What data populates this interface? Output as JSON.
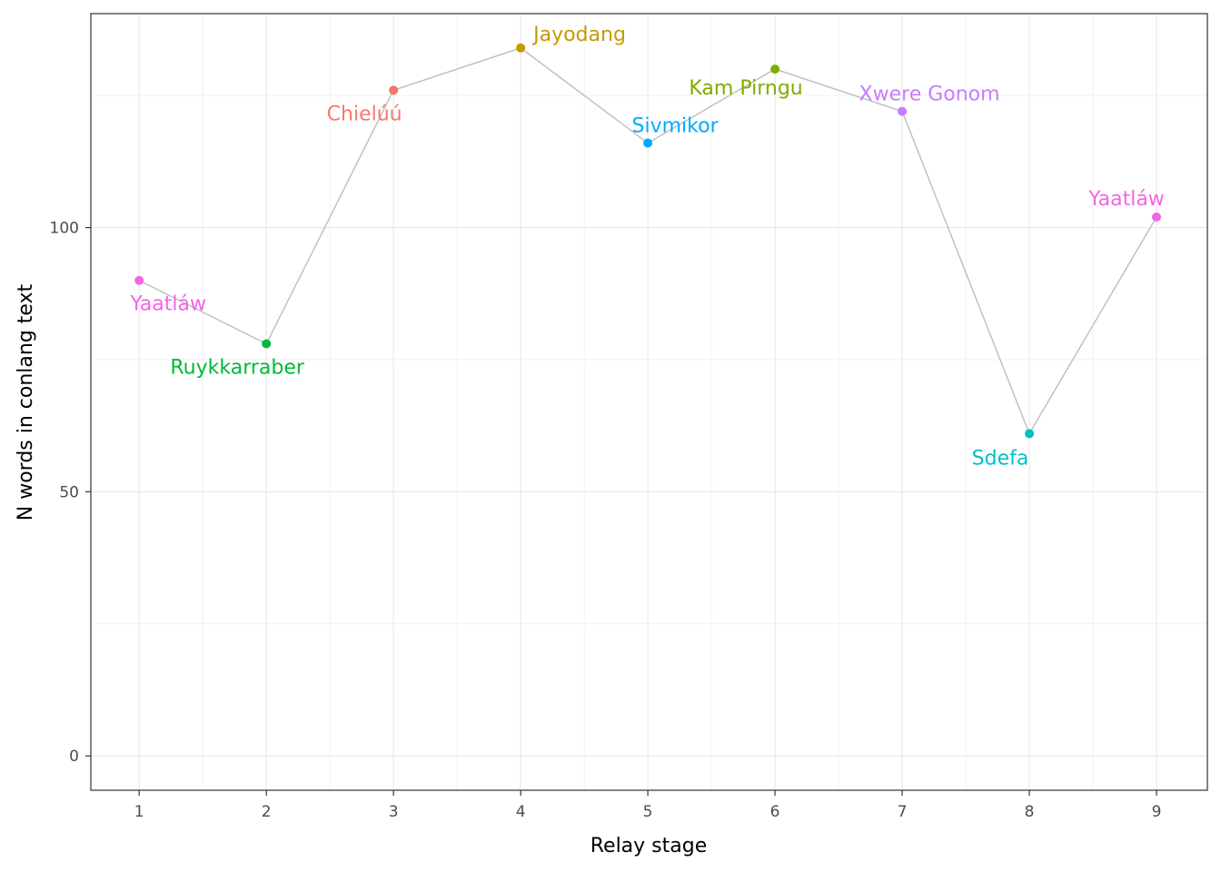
{
  "chart_data": {
    "type": "line",
    "xlabel": "Relay stage",
    "ylabel": "N words in conlang text",
    "x_ticks": [
      1,
      2,
      3,
      4,
      5,
      6,
      7,
      8,
      9
    ],
    "y_ticks": [
      0,
      50,
      100
    ],
    "xlim": [
      0.62,
      9.4
    ],
    "ylim": [
      -6.5,
      140.5
    ],
    "grid": true,
    "legend": "none",
    "line_color": "#bdbdbd",
    "points": [
      {
        "x": 1,
        "y": 90,
        "label": "Yaatláw",
        "color": "#f564e3",
        "label_pos": "below"
      },
      {
        "x": 2,
        "y": 78,
        "label": "Ruykkarraber",
        "color": "#00ba38",
        "label_pos": "below"
      },
      {
        "x": 3,
        "y": 126,
        "label": "Chielúú",
        "color": "#f8766d",
        "label_pos": "below"
      },
      {
        "x": 4,
        "y": 134,
        "label": "Jayodang",
        "color": "#c49a00",
        "label_pos": "above-right"
      },
      {
        "x": 5,
        "y": 116,
        "label": "Sivmikor",
        "color": "#00a9ff",
        "label_pos": "above"
      },
      {
        "x": 6,
        "y": 130,
        "label": "Kam Pirngu",
        "color": "#7cae00",
        "label_pos": "below-left"
      },
      {
        "x": 7,
        "y": 122,
        "label": "Xwere Gonom",
        "color": "#c77cff",
        "label_pos": "above"
      },
      {
        "x": 8,
        "y": 61,
        "label": "Sdefa",
        "color": "#00bfc4",
        "label_pos": "below-left"
      },
      {
        "x": 9,
        "y": 102,
        "label": "Yaatláw",
        "color": "#f564e3",
        "label_pos": "above-left"
      }
    ]
  }
}
